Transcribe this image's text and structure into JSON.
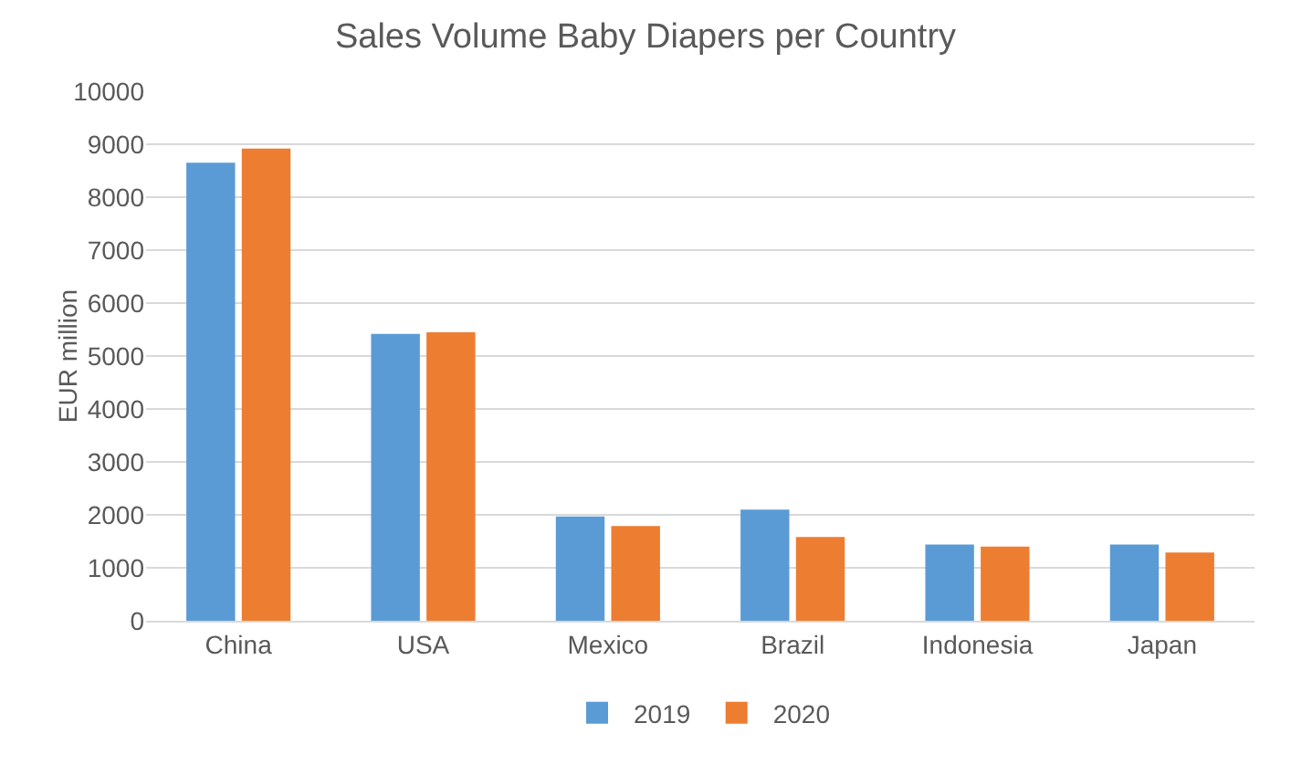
{
  "chart_data": {
    "type": "bar",
    "title": "Sales Volume Baby Diapers per Country",
    "ylabel": "EUR million",
    "categories": [
      "China",
      "USA",
      "Mexico",
      "Brazil",
      "Indonesia",
      "Japan"
    ],
    "series": [
      {
        "name": "2019",
        "color": "#5b9bd5",
        "values": [
          8650,
          5420,
          1970,
          2100,
          1440,
          1440
        ]
      },
      {
        "name": "2020",
        "color": "#ed7d31",
        "values": [
          8920,
          5450,
          1790,
          1580,
          1400,
          1290
        ]
      }
    ],
    "ylim": [
      0,
      10000
    ],
    "yticks": [
      0,
      1000,
      2000,
      3000,
      4000,
      5000,
      6000,
      7000,
      8000,
      9000,
      10000
    ],
    "grid": "y",
    "legend": "bottom"
  }
}
